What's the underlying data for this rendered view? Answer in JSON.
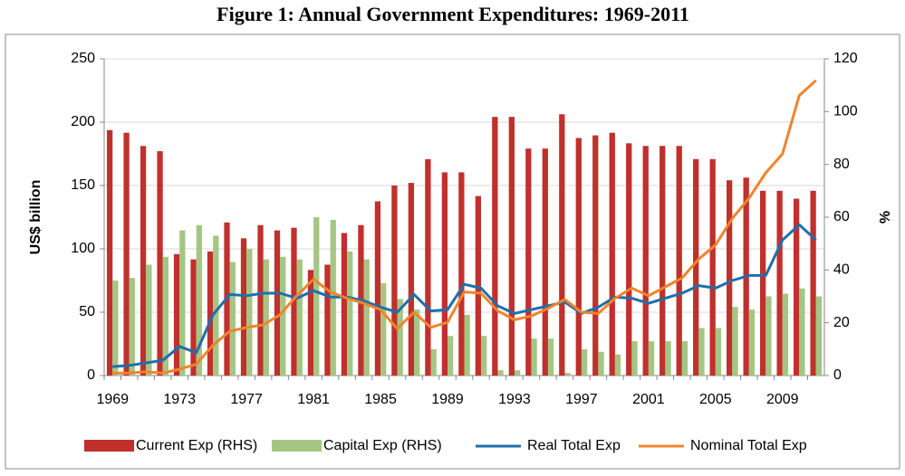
{
  "chart_data": {
    "type": "bar",
    "title": "Figure 1: Annual Government Expenditures: 1969-2011",
    "y_label": "US$ billion",
    "y2_label": "%",
    "categories": [
      "1969",
      null,
      null,
      null,
      "1973",
      null,
      null,
      null,
      "1977",
      null,
      null,
      null,
      "1981",
      null,
      null,
      null,
      "1985",
      null,
      null,
      null,
      "1989",
      null,
      null,
      null,
      "1993",
      null,
      null,
      null,
      "1997",
      null,
      null,
      null,
      "2001",
      null,
      null,
      null,
      "2005",
      null,
      null,
      null,
      "2009",
      null,
      null
    ],
    "series": [
      {
        "name": "Current Exp (RHS)",
        "type": "bar",
        "axis": "y2",
        "color": "#c0302c",
        "values": [
          93,
          92,
          87,
          85,
          46,
          44,
          47,
          58,
          52,
          57,
          55,
          56,
          40,
          42,
          54,
          57,
          66,
          72,
          73,
          82,
          77,
          77,
          68,
          98,
          98,
          86,
          86,
          99,
          90,
          91,
          92,
          88,
          87,
          87,
          87,
          82,
          82,
          74,
          75,
          70,
          70,
          67,
          70
        ]
      },
      {
        "name": "Capital Exp (RHS)",
        "type": "bar",
        "axis": "y2",
        "color": "#a4c683",
        "values": [
          36,
          37,
          42,
          45,
          55,
          57,
          53,
          43,
          48,
          44,
          45,
          44,
          60,
          59,
          47,
          44,
          35,
          29,
          25,
          10,
          15,
          23,
          15,
          2,
          2,
          14,
          14,
          1,
          10,
          9,
          8,
          13,
          13,
          13,
          13,
          18,
          18,
          26,
          25,
          30,
          31,
          33,
          30
        ]
      },
      {
        "name": "Real Total Exp",
        "type": "line",
        "color": "#1f6faa",
        "values": [
          7,
          8,
          10,
          12,
          23,
          18,
          48,
          64,
          63,
          65,
          65,
          61,
          67,
          62,
          62,
          59,
          54,
          50,
          64,
          51,
          52,
          72,
          69,
          55,
          49,
          52,
          55,
          58,
          49,
          54,
          62,
          61,
          57,
          61,
          65,
          71,
          69,
          75,
          79,
          79,
          107,
          119,
          107
        ]
      },
      {
        "name": "Nominal Total Exp",
        "type": "line",
        "color": "#f0842c",
        "values": [
          2,
          2,
          3,
          2,
          5,
          9,
          24,
          35,
          38,
          40,
          48,
          63,
          76,
          66,
          61,
          57,
          52,
          37,
          50,
          38,
          42,
          66,
          65,
          51,
          44,
          47,
          53,
          60,
          50,
          49,
          61,
          69,
          63,
          70,
          77,
          92,
          103,
          124,
          140,
          160,
          175,
          221,
          233
        ]
      }
    ],
    "ylim": [
      0,
      250
    ],
    "yticks": [
      0,
      50,
      100,
      150,
      200,
      250
    ],
    "y2lim": [
      0,
      120
    ],
    "y2ticks": [
      0,
      20,
      40,
      60,
      80,
      100,
      120
    ],
    "grid": true,
    "legend": "bottom"
  }
}
